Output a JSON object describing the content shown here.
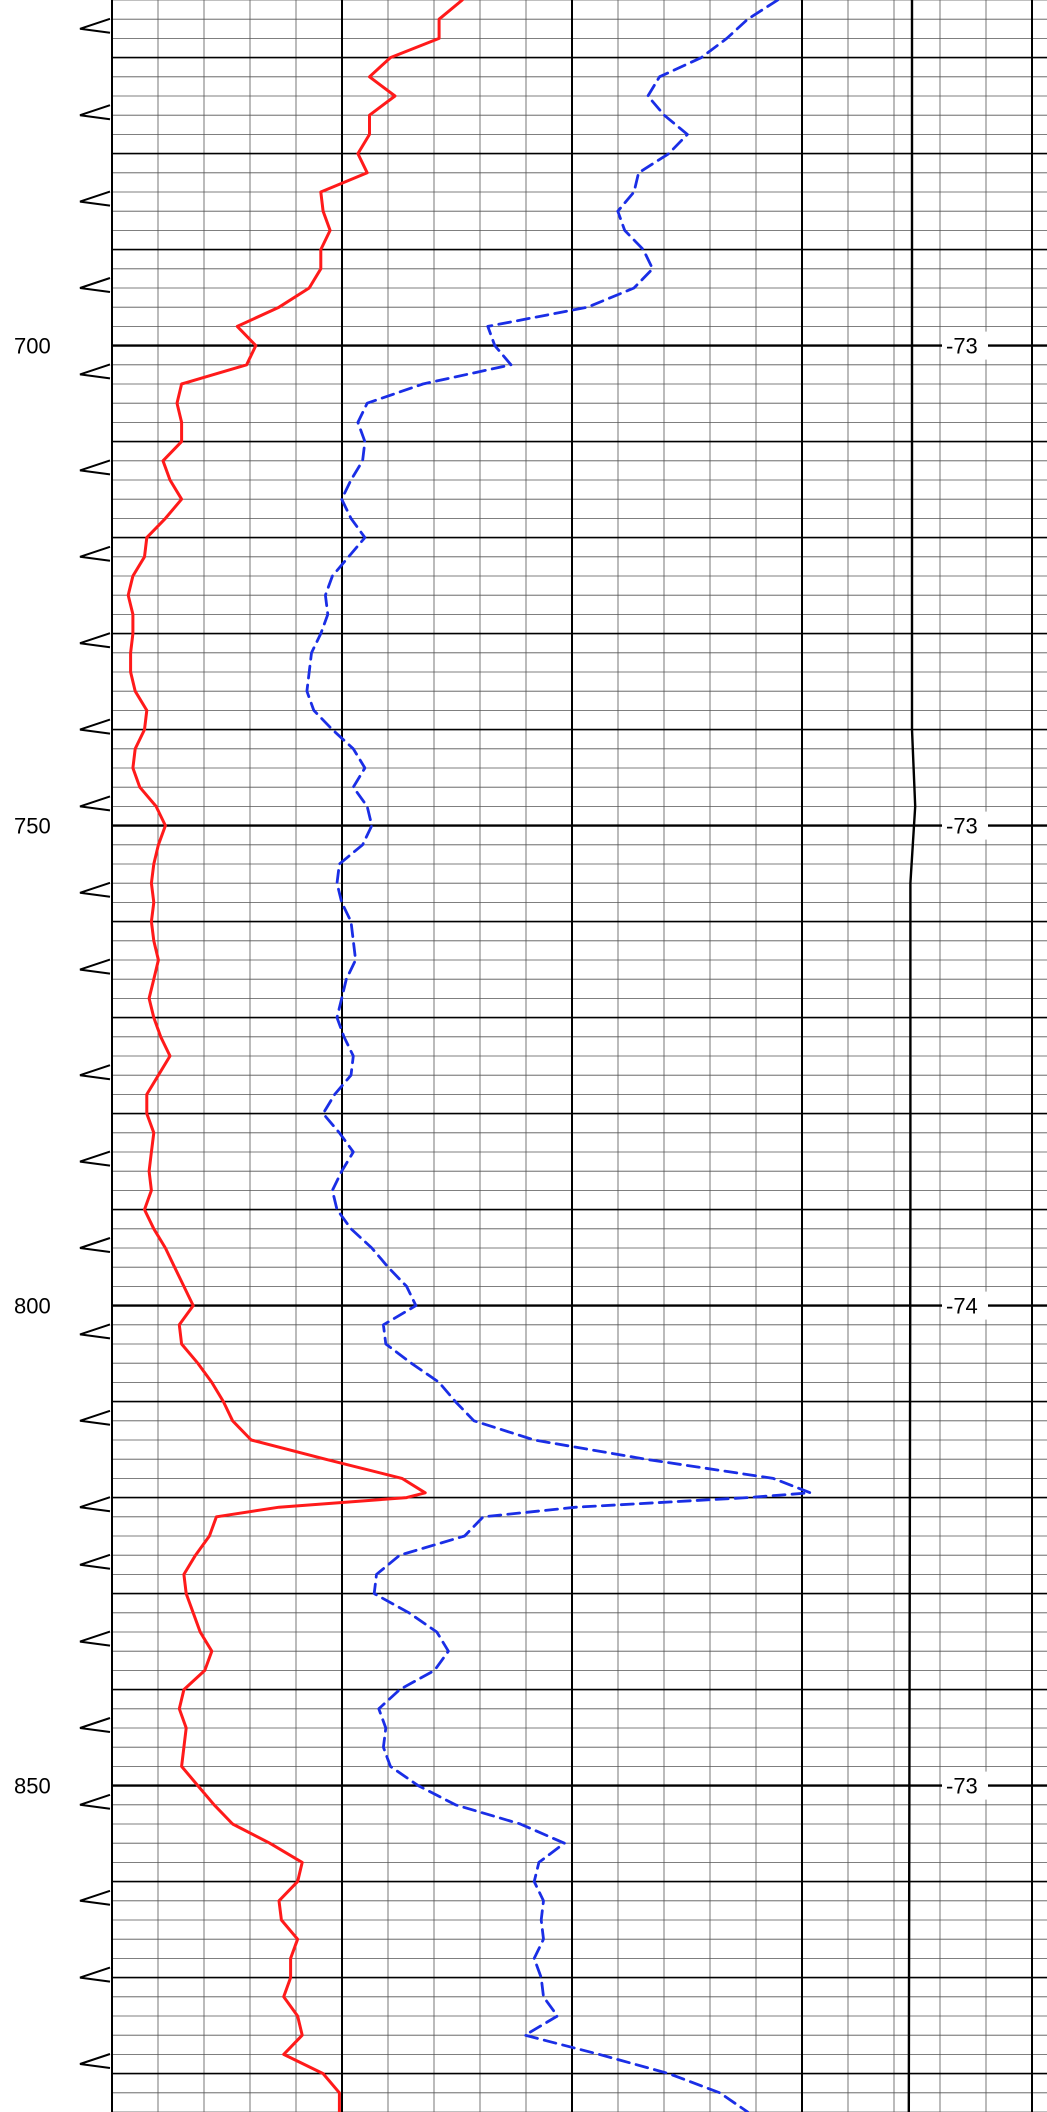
{
  "chart_data": {
    "type": "line",
    "title": "",
    "xlabel": "",
    "ylabel": "",
    "ylim": [
      664,
      884
    ],
    "grid": true,
    "legend": "none",
    "depth_ticks": [
      "700",
      "750",
      "800",
      "850"
    ],
    "sp_labels": [
      {
        "depth": 700,
        "text": "-73"
      },
      {
        "depth": 750,
        "text": "-73"
      },
      {
        "depth": 800,
        "text": "-74"
      },
      {
        "depth": 850,
        "text": "-73"
      }
    ],
    "colors": {
      "solid_curve": "#ff1a1a",
      "dashed_curve": "#1a2ee6",
      "sp_line": "#000000",
      "grid": "#000000"
    },
    "markers_depths": [
      667,
      676,
      685,
      694,
      703,
      713,
      722,
      731,
      740,
      748,
      757,
      765,
      776,
      785,
      794,
      803,
      812,
      821,
      827,
      835,
      844,
      852,
      862,
      870,
      879
    ],
    "series": [
      {
        "style": "solid",
        "color": "#ff1a1a",
        "points": [
          [
            664.0,
            151
          ],
          [
            666.0,
            141
          ],
          [
            668.0,
            141
          ],
          [
            670.0,
            120
          ],
          [
            672.0,
            111
          ],
          [
            674.0,
            122
          ],
          [
            676.0,
            111
          ],
          [
            678.0,
            111
          ],
          [
            680.0,
            106
          ],
          [
            682.0,
            110
          ],
          [
            684.0,
            90
          ],
          [
            686.0,
            91
          ],
          [
            688.0,
            94
          ],
          [
            690.0,
            90
          ],
          [
            692.0,
            90
          ],
          [
            694.0,
            85
          ],
          [
            696.0,
            72
          ],
          [
            698.0,
            54
          ],
          [
            700.0,
            62
          ],
          [
            702.0,
            58
          ],
          [
            704.0,
            30
          ],
          [
            706.0,
            28
          ],
          [
            708.0,
            30
          ],
          [
            710.0,
            30
          ],
          [
            712.0,
            22
          ],
          [
            714.0,
            25
          ],
          [
            716.0,
            30
          ],
          [
            718.0,
            23
          ],
          [
            720.0,
            15
          ],
          [
            722.0,
            14
          ],
          [
            724.0,
            9
          ],
          [
            726.0,
            7
          ],
          [
            728.0,
            9
          ],
          [
            730.0,
            9
          ],
          [
            732.0,
            8
          ],
          [
            734.0,
            8
          ],
          [
            736.0,
            10
          ],
          [
            738.0,
            15
          ],
          [
            740.0,
            14
          ],
          [
            742.0,
            10
          ],
          [
            744.0,
            9
          ],
          [
            746.0,
            12
          ],
          [
            748.0,
            19
          ],
          [
            750.0,
            23
          ],
          [
            752.0,
            20
          ],
          [
            754.0,
            18
          ],
          [
            756.0,
            17
          ],
          [
            758.0,
            18
          ],
          [
            760.0,
            17
          ],
          [
            762.0,
            18
          ],
          [
            764.0,
            20
          ],
          [
            766.0,
            18
          ],
          [
            768.0,
            16
          ],
          [
            770.0,
            18
          ],
          [
            772.0,
            21
          ],
          [
            774.0,
            25
          ],
          [
            776.0,
            20
          ],
          [
            778.0,
            15
          ],
          [
            780.0,
            15
          ],
          [
            782.0,
            18
          ],
          [
            784.0,
            17
          ],
          [
            786.0,
            16
          ],
          [
            788.0,
            17
          ],
          [
            790.0,
            14
          ],
          [
            792.0,
            18
          ],
          [
            794.0,
            23
          ],
          [
            796.0,
            27
          ],
          [
            798.0,
            31
          ],
          [
            800.0,
            35
          ],
          [
            802.0,
            29
          ],
          [
            804.0,
            30
          ],
          [
            806.0,
            37
          ],
          [
            808.0,
            43
          ],
          [
            810.0,
            48
          ],
          [
            812.0,
            52
          ],
          [
            814.0,
            60
          ],
          [
            816.0,
            92
          ],
          [
            818.0,
            125
          ],
          [
            819.5,
            135
          ],
          [
            820.0,
            127
          ],
          [
            821.0,
            72
          ],
          [
            822.0,
            45
          ],
          [
            824.0,
            42
          ],
          [
            826.0,
            36
          ],
          [
            828.0,
            31
          ],
          [
            830.0,
            32
          ],
          [
            832.0,
            35
          ],
          [
            834.0,
            38
          ],
          [
            836.0,
            43
          ],
          [
            838.0,
            40
          ],
          [
            840.0,
            31
          ],
          [
            842.0,
            29
          ],
          [
            844.0,
            32
          ],
          [
            846.0,
            31
          ],
          [
            848.0,
            30
          ],
          [
            850.0,
            37
          ],
          [
            852.0,
            44
          ],
          [
            854.0,
            52
          ],
          [
            856.0,
            68
          ],
          [
            858.0,
            82
          ],
          [
            860.0,
            80
          ],
          [
            862.0,
            72
          ],
          [
            864.0,
            73
          ],
          [
            866.0,
            80
          ],
          [
            868.0,
            77
          ],
          [
            870.0,
            77
          ],
          [
            872.0,
            74
          ],
          [
            874.0,
            80
          ],
          [
            876.0,
            82
          ],
          [
            878.0,
            74
          ],
          [
            880.0,
            91
          ],
          [
            882.0,
            98
          ],
          [
            884.0,
            98
          ]
        ]
      },
      {
        "style": "dashed",
        "color": "#1a2ee6",
        "points": [
          [
            664.0,
            287
          ],
          [
            666.0,
            274
          ],
          [
            668.0,
            265
          ],
          [
            670.0,
            254
          ],
          [
            672.0,
            236
          ],
          [
            674.0,
            231
          ],
          [
            676.0,
            238
          ],
          [
            678.0,
            248
          ],
          [
            680.0,
            240
          ],
          [
            682.0,
            227
          ],
          [
            684.0,
            225
          ],
          [
            686.0,
            218
          ],
          [
            688.0,
            221
          ],
          [
            690.0,
            229
          ],
          [
            692.0,
            233
          ],
          [
            694.0,
            225
          ],
          [
            696.0,
            205
          ],
          [
            698.0,
            162
          ],
          [
            700.0,
            165
          ],
          [
            702.0,
            172
          ],
          [
            704.0,
            134
          ],
          [
            706.0,
            110
          ],
          [
            708.0,
            106
          ],
          [
            710.0,
            109
          ],
          [
            712.0,
            108
          ],
          [
            714.0,
            103
          ],
          [
            716.0,
            99
          ],
          [
            718.0,
            103
          ],
          [
            720.0,
            109
          ],
          [
            722.0,
            102
          ],
          [
            724.0,
            95
          ],
          [
            726.0,
            92
          ],
          [
            728.0,
            93
          ],
          [
            730.0,
            90
          ],
          [
            732.0,
            86
          ],
          [
            734.0,
            85
          ],
          [
            736.0,
            84
          ],
          [
            738.0,
            87
          ],
          [
            740.0,
            95
          ],
          [
            742.0,
            104
          ],
          [
            744.0,
            109
          ],
          [
            746.0,
            104
          ],
          [
            748.0,
            110
          ],
          [
            750.0,
            112
          ],
          [
            752.0,
            108
          ],
          [
            754.0,
            98
          ],
          [
            756.0,
            97
          ],
          [
            758.0,
            99
          ],
          [
            760.0,
            103
          ],
          [
            762.0,
            104
          ],
          [
            764.0,
            105
          ],
          [
            766.0,
            101
          ],
          [
            768.0,
            99
          ],
          [
            770.0,
            97
          ],
          [
            772.0,
            100
          ],
          [
            774.0,
            104
          ],
          [
            776.0,
            103
          ],
          [
            778.0,
            96
          ],
          [
            780.0,
            91
          ],
          [
            782.0,
            98
          ],
          [
            784.0,
            104
          ],
          [
            786.0,
            99
          ],
          [
            788.0,
            95
          ],
          [
            790.0,
            97
          ],
          [
            792.0,
            103
          ],
          [
            794.0,
            112
          ],
          [
            796.0,
            119
          ],
          [
            798.0,
            127
          ],
          [
            800.0,
            131
          ],
          [
            802.0,
            117
          ],
          [
            804.0,
            118
          ],
          [
            806.0,
            129
          ],
          [
            808.0,
            141
          ],
          [
            810.0,
            148
          ],
          [
            812.0,
            156
          ],
          [
            814.0,
            182
          ],
          [
            816.0,
            230
          ],
          [
            818.0,
            285
          ],
          [
            819.5,
            301
          ],
          [
            820.0,
            274
          ],
          [
            821.0,
            200
          ],
          [
            822.0,
            160
          ],
          [
            824.0,
            152
          ],
          [
            826.0,
            124
          ],
          [
            828.0,
            114
          ],
          [
            830.0,
            113
          ],
          [
            832.0,
            128
          ],
          [
            834.0,
            140
          ],
          [
            836.0,
            145
          ],
          [
            838.0,
            139
          ],
          [
            840.0,
            124
          ],
          [
            842.0,
            115
          ],
          [
            844.0,
            118
          ],
          [
            846.0,
            117
          ],
          [
            848.0,
            120
          ],
          [
            850.0,
            132
          ],
          [
            852.0,
            148
          ],
          [
            854.0,
            176
          ],
          [
            856.0,
            195
          ],
          [
            858.0,
            184
          ],
          [
            860.0,
            182
          ],
          [
            862.0,
            186
          ],
          [
            864.0,
            185
          ],
          [
            866.0,
            186
          ],
          [
            868.0,
            182
          ],
          [
            870.0,
            185
          ],
          [
            872.0,
            186
          ],
          [
            874.0,
            192
          ],
          [
            876.0,
            178
          ],
          [
            878.0,
            210
          ],
          [
            880.0,
            240
          ],
          [
            882.0,
            262
          ],
          [
            884.0,
            274
          ]
        ]
      },
      {
        "style": "sp",
        "color": "#000000",
        "points": [
          [
            664.0,
            100
          ],
          [
            740.0,
            100
          ],
          [
            748.0,
            100.4
          ],
          [
            756.0,
            99.8
          ],
          [
            790.0,
            99.8
          ],
          [
            884.0,
            99.6
          ]
        ]
      }
    ]
  }
}
